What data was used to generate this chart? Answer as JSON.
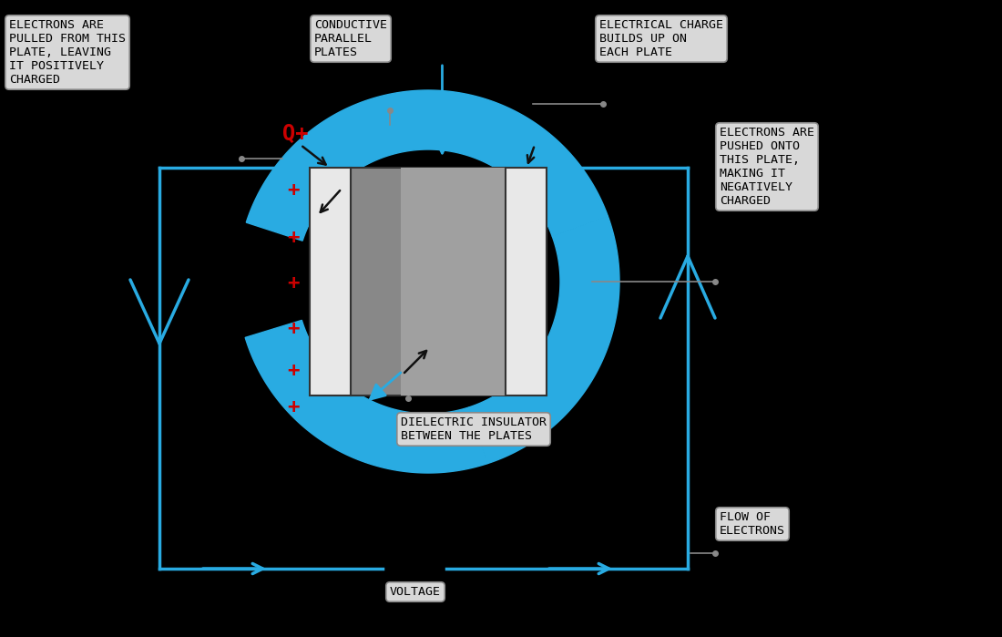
{
  "bg_color": "#000000",
  "blue": "#29ABE2",
  "red": "#CC0000",
  "plate_color": "#E8E8E8",
  "dielectric_dark": "#888888",
  "dielectric_mid": "#A0A0A0",
  "box_fc": "#D8D8D8",
  "box_ec": "#888888",
  "labels": {
    "electrons_pulled": "ELECTRONS ARE\nPULLED FROM THIS\nPLATE, LEAVING\nIT POSITIVELY\nCHARGED",
    "conductive": "CONDUCTIVE\nPARALLEL\nPLATES",
    "electrical_charge": "ELECTRICAL CHARGE\nBUILDS UP ON\nEACH PLATE",
    "electrons_pushed": "ELECTRONS ARE\nPUSHED ONTO\nTHIS PLATE,\nMAKING IT\nNEGATIVELY\nCHARGED",
    "dielectric": "DIELECTRIC INSULATOR\nBETWEEN THE PLATES",
    "flow": "FLOW OF\nELECTRONS",
    "voltage": "VOLTAGE"
  },
  "figsize": [
    11.0,
    6.99
  ],
  "dpi": 100
}
